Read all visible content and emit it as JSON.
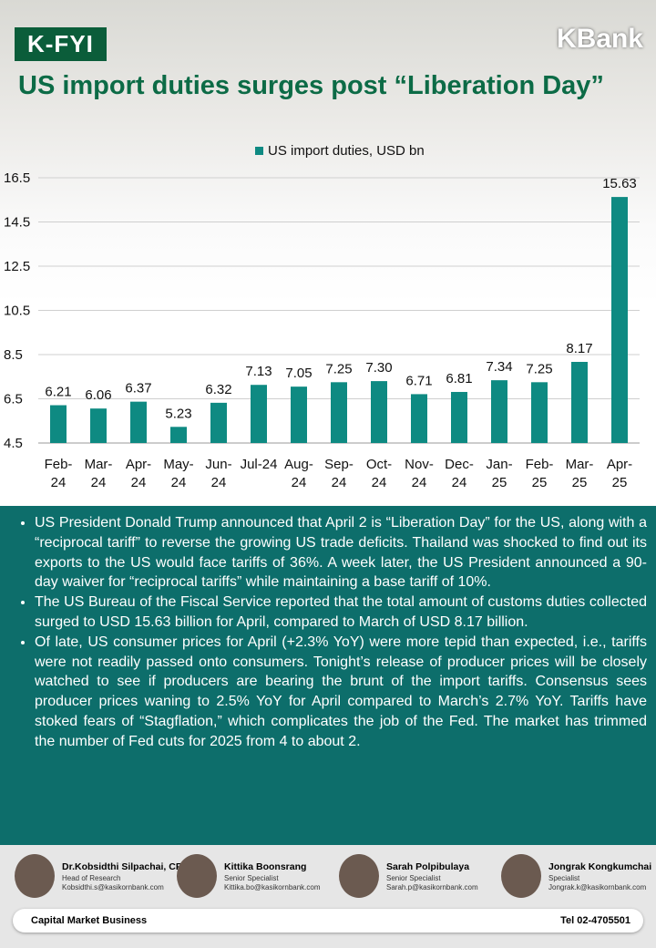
{
  "header": {
    "badge": "K-FYI",
    "brand": "KBank",
    "title": "US import duties surges post “Liberation Day”"
  },
  "chart_data": {
    "type": "bar",
    "categories": [
      "Feb-24",
      "Mar-24",
      "Apr-24",
      "May-24",
      "Jun-24",
      "Jul-24",
      "Aug-24",
      "Sep-24",
      "Oct-24",
      "Nov-24",
      "Dec-24",
      "Jan-25",
      "Feb-25",
      "Mar-25",
      "Apr-25"
    ],
    "series": [
      {
        "name": "US import duties, USD bn",
        "color": "#0e8a82",
        "values": [
          6.21,
          6.06,
          6.37,
          5.23,
          6.32,
          7.13,
          7.05,
          7.25,
          7.3,
          6.71,
          6.81,
          7.34,
          7.25,
          8.17,
          15.63
        ],
        "value_labels": [
          "6.21",
          "6.06",
          "6.37",
          "5.23",
          "6.32",
          "7.13",
          "7.05",
          "7.25",
          "7.30",
          "6.71",
          "6.81",
          "7.34",
          "7.25",
          "8.17",
          "15.63"
        ]
      }
    ],
    "ylim": [
      4.5,
      16.5
    ],
    "yticks": [
      4.5,
      6.5,
      8.5,
      10.5,
      12.5,
      14.5,
      16.5
    ],
    "grid": true,
    "legend": "top"
  },
  "bullets": [
    "US President Donald Trump announced that April 2 is “Liberation Day” for the US, along with a “reciprocal tariff” to reverse the growing US trade deficits. Thailand was shocked to find out its exports to the US would face tariffs of 36%. A week later, the US President announced a 90-day waiver for “reciprocal tariffs” while maintaining a base tariff of 10%.",
    "The US Bureau of the Fiscal Service reported that the total amount of customs duties collected surged to USD 15.63 billion for April, compared to March of USD 8.17 billion.",
    "Of late, US consumer prices for April (+2.3% YoY) were more tepid than expected, i.e., tariffs were not readily passed onto consumers. Tonight’s release of producer prices will be closely watched to see if producers are bearing the brunt of the import tariffs. Consensus sees producer prices waning to 2.5% YoY for April compared to March’s 2.7% YoY. Tariffs have stoked fears of “Stagflation,” which complicates the job of the Fed. The market has trimmed the number of Fed cuts for 2025 from 4 to about 2."
  ],
  "footer": {
    "people": [
      {
        "name": "Dr.Kobsidthi Silpachai, CFA",
        "role": "Head of Research",
        "email": "Kobsidthi.s@kasikornbank.com"
      },
      {
        "name": "Kittika Boonsrang",
        "role": "Senior Specialist",
        "email": "Kittika.bo@kasikornbank.com"
      },
      {
        "name": "Sarah Polpibulaya",
        "role": "Senior Specialist",
        "email": "Sarah.p@kasikornbank.com"
      },
      {
        "name": "Jongrak Kongkumchai",
        "role": "Specialist",
        "email": "Jongrak.k@kasikornbank.com"
      }
    ],
    "unit": "Capital Market Business",
    "phone": "Tel 02-4705501"
  }
}
